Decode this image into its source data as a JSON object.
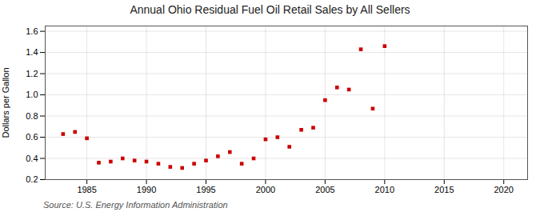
{
  "chart_data": {
    "type": "scatter",
    "title": "Annual Ohio Residual Fuel Oil Retail Sales by All Sellers",
    "ylabel": "Dollars per Gallon",
    "annotations": [
      "Source: U.S. Energy Information Administration"
    ],
    "x": [
      1983,
      1984,
      1985,
      1986,
      1987,
      1988,
      1989,
      1990,
      1991,
      1992,
      1993,
      1994,
      1995,
      1996,
      1997,
      1998,
      1999,
      2000,
      2001,
      2002,
      2003,
      2004,
      2005,
      2006,
      2007,
      2008,
      2009,
      2010
    ],
    "values": [
      0.63,
      0.65,
      0.59,
      0.36,
      0.37,
      0.4,
      0.38,
      0.37,
      0.35,
      0.32,
      0.31,
      0.35,
      0.38,
      0.42,
      0.46,
      0.35,
      0.4,
      0.58,
      0.6,
      0.51,
      0.67,
      0.69,
      0.95,
      1.07,
      1.05,
      1.43,
      0.87,
      1.46
    ],
    "color": "#cc0000",
    "marker": "square",
    "xlim": [
      1981.5,
      2022
    ],
    "xticks": [
      1985,
      1990,
      1995,
      2000,
      2005,
      2010,
      2015,
      2020
    ],
    "ylim": [
      0.2,
      1.65
    ],
    "yticks": [
      0.2,
      0.4,
      0.6,
      0.8,
      {
        "value": 1.0,
        "label": "1.0"
      },
      1.2,
      1.4,
      1.6
    ],
    "grid": true
  }
}
